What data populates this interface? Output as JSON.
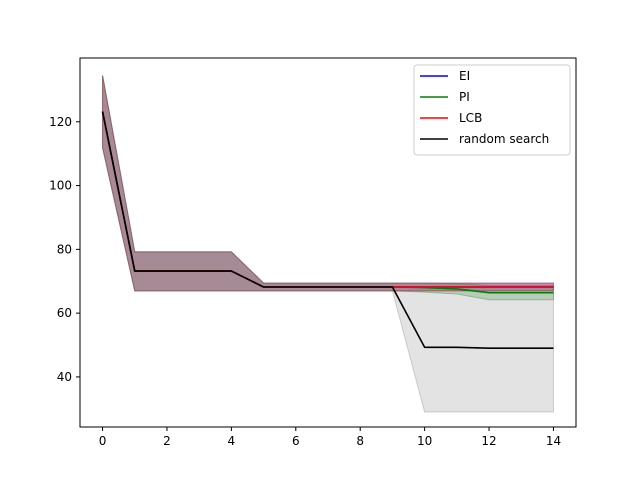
{
  "chart_data": {
    "type": "line",
    "title": "",
    "xlabel": "",
    "ylabel": "",
    "xlim": [
      -0.7,
      14.7
    ],
    "ylim": [
      24.3,
      140.0
    ],
    "x_ticks": [
      0,
      2,
      4,
      6,
      8,
      10,
      12,
      14
    ],
    "y_ticks": [
      40,
      60,
      80,
      100,
      120
    ],
    "grid": false,
    "legend_position": "top-right",
    "x": [
      0,
      1,
      2,
      3,
      4,
      5,
      6,
      7,
      8,
      9,
      10,
      11,
      12,
      13,
      14
    ],
    "series": [
      {
        "name": "EI",
        "color": "#0000ff",
        "band_color": "#0000ff",
        "values": [
          123.2,
          73.2,
          73.2,
          73.2,
          73.2,
          68.2,
          68.2,
          68.2,
          68.2,
          68.2,
          68.2,
          68.2,
          68.2,
          68.2,
          68.2
        ],
        "lower": [
          111.9,
          67.0,
          67.0,
          67.0,
          67.0,
          67.0,
          67.0,
          67.0,
          67.0,
          67.0,
          67.0,
          67.0,
          67.0,
          67.0,
          67.0
        ],
        "upper": [
          134.5,
          79.2,
          79.2,
          79.2,
          79.2,
          69.4,
          69.4,
          69.4,
          69.4,
          69.4,
          69.4,
          69.4,
          69.4,
          69.4,
          69.4
        ]
      },
      {
        "name": "PI",
        "color": "#008000",
        "band_color": "#008000",
        "values": [
          123.2,
          73.2,
          73.2,
          73.2,
          73.2,
          68.2,
          68.2,
          68.2,
          68.2,
          68.2,
          68.0,
          67.6,
          66.4,
          66.4,
          66.4
        ],
        "lower": [
          111.9,
          67.0,
          67.0,
          67.0,
          67.0,
          67.0,
          67.0,
          67.0,
          67.0,
          67.0,
          66.6,
          66.0,
          64.2,
          64.2,
          64.2
        ],
        "upper": [
          134.5,
          79.2,
          79.2,
          79.2,
          79.2,
          69.4,
          69.4,
          69.4,
          69.4,
          69.4,
          69.4,
          69.2,
          68.7,
          68.7,
          68.7
        ]
      },
      {
        "name": "LCB",
        "color": "#ff0000",
        "band_color": "#ff0000",
        "values": [
          123.2,
          73.2,
          73.2,
          73.2,
          73.2,
          68.2,
          68.2,
          68.2,
          68.2,
          68.2,
          68.2,
          68.2,
          68.2,
          68.2,
          68.2
        ],
        "lower": [
          111.9,
          67.0,
          67.0,
          67.0,
          67.0,
          67.0,
          67.0,
          67.0,
          67.0,
          67.0,
          67.0,
          67.0,
          67.0,
          67.0,
          67.0
        ],
        "upper": [
          134.5,
          79.2,
          79.2,
          79.2,
          79.2,
          69.4,
          69.4,
          69.4,
          69.4,
          69.4,
          69.4,
          69.4,
          69.4,
          69.4,
          69.4
        ]
      },
      {
        "name": "random search",
        "color": "#000000",
        "band_color": "#808080",
        "values": [
          123.2,
          73.2,
          73.2,
          73.2,
          73.2,
          68.2,
          68.2,
          68.2,
          68.2,
          68.2,
          49.3,
          49.3,
          49.0,
          49.0,
          49.0
        ],
        "lower": [
          111.9,
          67.0,
          67.0,
          67.0,
          67.0,
          67.0,
          67.0,
          67.0,
          67.0,
          67.0,
          29.0,
          29.0,
          29.0,
          29.0,
          29.0
        ],
        "upper": [
          134.5,
          79.2,
          79.2,
          79.2,
          79.2,
          69.4,
          69.4,
          69.4,
          69.4,
          69.4,
          69.4,
          69.4,
          69.4,
          69.4,
          69.4
        ]
      }
    ]
  }
}
